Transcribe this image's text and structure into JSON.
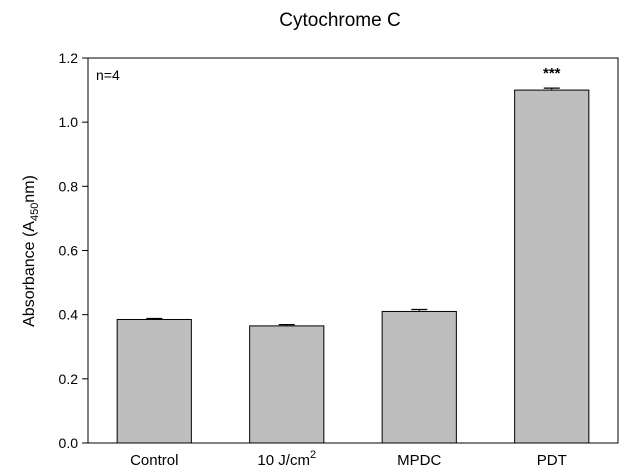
{
  "chart_data": {
    "type": "bar",
    "title": "Cytochrome C",
    "ylabel": {
      "base": "Absorbance (A",
      "subscript": "450",
      "suffix": "nm)"
    },
    "xlabel": "",
    "annotation": "n=4",
    "ylim": [
      0,
      1.2
    ],
    "yticks": [
      "0.0",
      "0.2",
      "0.4",
      "0.6",
      "0.8",
      "1.0",
      "1.2"
    ],
    "categories": [
      {
        "label": "Control"
      },
      {
        "label": "10 J/cm",
        "superscript": "2"
      },
      {
        "label": "MPDC"
      },
      {
        "label": "PDT"
      }
    ],
    "values": [
      0.385,
      0.365,
      0.41,
      1.1
    ],
    "errors": [
      0.003,
      0.004,
      0.006,
      0.006
    ],
    "significance": [
      "",
      "",
      "",
      "***"
    ],
    "bar_color": "#bebebe",
    "edge_color": "#000000",
    "grid": false
  }
}
